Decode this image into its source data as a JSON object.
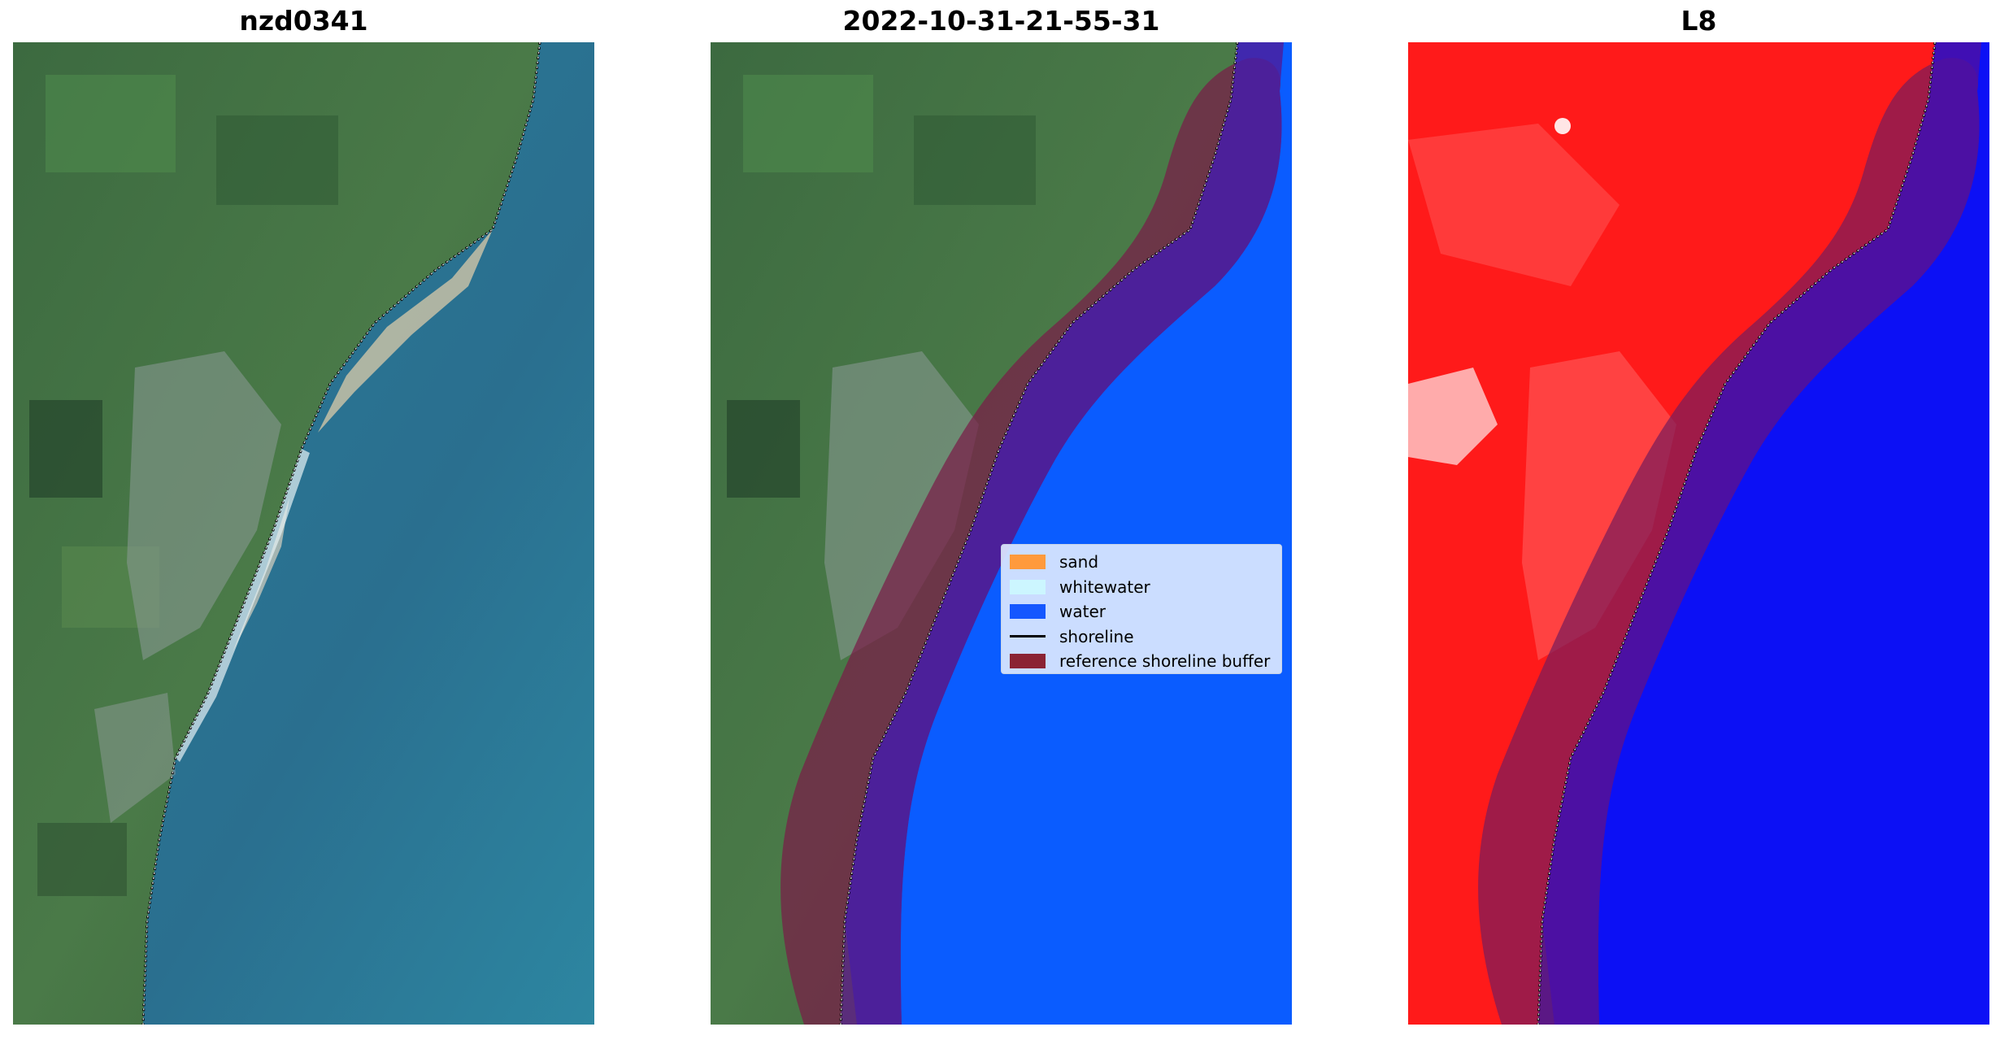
{
  "panels": [
    {
      "title": "nzd0341"
    },
    {
      "title": "2022-10-31-21-55-31"
    },
    {
      "title": "L8"
    }
  ],
  "legend": [
    {
      "label": "sand",
      "color": "#ff9a3c",
      "kind": "patch"
    },
    {
      "label": "whitewater",
      "color": "#ccf6ff",
      "kind": "patch"
    },
    {
      "label": "water",
      "color": "#1557ff",
      "kind": "patch"
    },
    {
      "label": "shoreline",
      "color": "#000000",
      "kind": "line"
    },
    {
      "label": "reference shoreline buffer",
      "color": "#8b2333",
      "kind": "patch"
    }
  ],
  "colors": {
    "land_green": "#3f6e42",
    "ocean_teal": "#2f7f9a",
    "water_class": "#0a5cff",
    "buffer": "#7a1c3c",
    "index_land": "#ff1a1a",
    "index_water": "#0c10f5"
  }
}
